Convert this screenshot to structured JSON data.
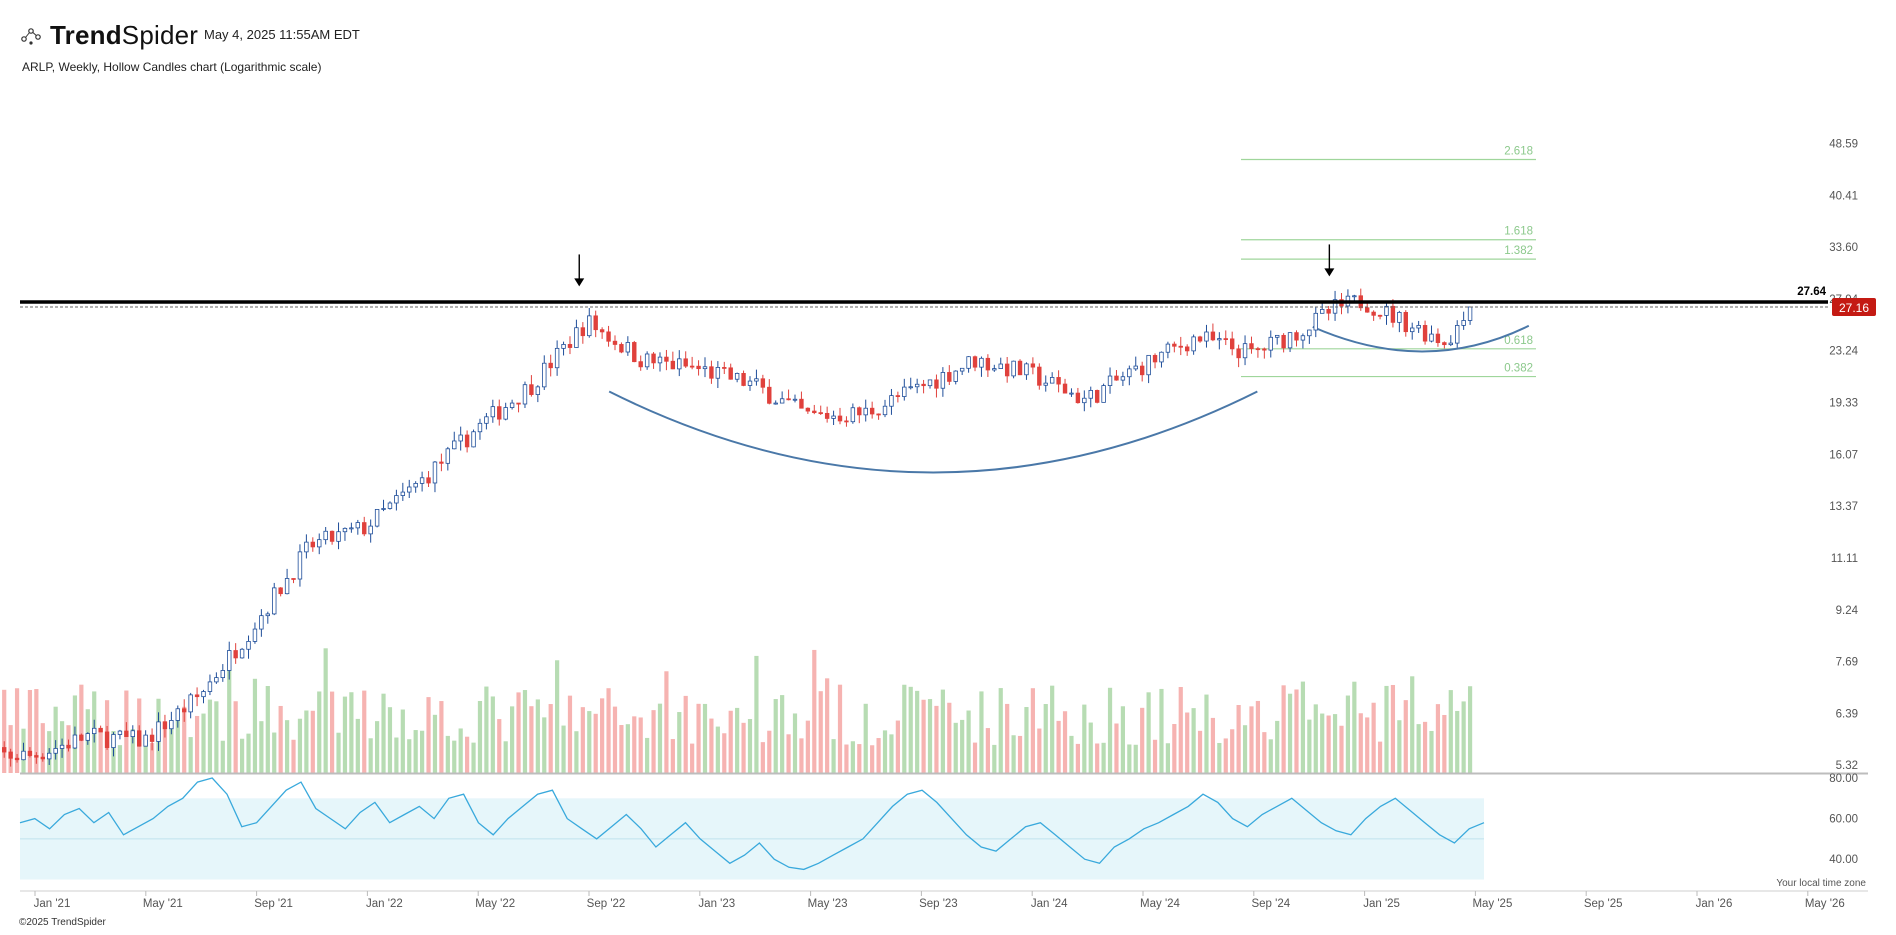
{
  "header": {
    "brand_regular": "Trend",
    "brand_bold": "Spider",
    "timestamp": "May 4, 2025 11:55AM EDT",
    "subtitle": "ARLP, Weekly, Hollow Candles chart (Logarithmic scale)"
  },
  "footer": {
    "copyright": "©2025 TrendSpider",
    "timezone_note": "Your local time zone"
  },
  "colors": {
    "up": "#1f4e9a",
    "down": "#e0413c",
    "vol_up": "#b7dcb3",
    "vol_down": "#f6b3b1",
    "rsi_line": "#39a9dc",
    "rsi_band": "#e6f6fa",
    "fib": "#9fd69b",
    "curve": "#4a78a8",
    "price_badge": "#c41a13"
  },
  "chart_data": {
    "type": "candlestick",
    "symbol": "ARLP",
    "interval": "Weekly",
    "scale": "log",
    "x_ticks": [
      "Jan '21",
      "May '21",
      "Sep '21",
      "Jan '22",
      "May '22",
      "Sep '22",
      "Jan '23",
      "May '23",
      "Sep '23",
      "Jan '24",
      "May '24",
      "Sep '24",
      "Jan '25",
      "May '25",
      "Sep '25",
      "Jan '26",
      "May '26"
    ],
    "y_ticks": [
      "48.59",
      "40.41",
      "33.60",
      "27.94",
      "23.24",
      "19.33",
      "16.07",
      "13.37",
      "11.11",
      "9.24",
      "7.69",
      "6.39",
      "5.32"
    ],
    "y_tick_values": [
      48.59,
      40.41,
      33.6,
      27.94,
      23.24,
      19.33,
      16.07,
      13.37,
      11.11,
      9.24,
      7.69,
      6.39,
      5.32
    ],
    "resistance": {
      "value": 27.64,
      "label": "27.64"
    },
    "last_price": {
      "value": 27.16,
      "label": "27.16"
    },
    "fib_levels": [
      {
        "label": "2.618",
        "value": 45.9
      },
      {
        "label": "1.618",
        "value": 34.5
      },
      {
        "label": "1.382",
        "value": 32.2
      },
      {
        "label": "0.618",
        "value": 23.4
      },
      {
        "label": "0.382",
        "value": 21.2
      }
    ],
    "price_path": [
      {
        "date": "Jan '21",
        "close": 5.5
      },
      {
        "date": "Mar '21",
        "close": 5.9
      },
      {
        "date": "May '21",
        "close": 5.8
      },
      {
        "date": "Jul '21",
        "close": 6.8
      },
      {
        "date": "Sep '21",
        "close": 8.8
      },
      {
        "date": "Nov '21",
        "close": 11.6
      },
      {
        "date": "Jan '22",
        "close": 12.4
      },
      {
        "date": "Mar '22",
        "close": 14.6
      },
      {
        "date": "May '22",
        "close": 17.6
      },
      {
        "date": "Jul '22",
        "close": 20.6
      },
      {
        "date": "Sep '22",
        "close": 25.8
      },
      {
        "date": "Nov '22",
        "close": 22.5
      },
      {
        "date": "Jan '23",
        "close": 21.8
      },
      {
        "date": "Mar '23",
        "close": 20.6
      },
      {
        "date": "May '23",
        "close": 18.4
      },
      {
        "date": "Jul '23",
        "close": 18.6
      },
      {
        "date": "Sep '23",
        "close": 20.4
      },
      {
        "date": "Nov '23",
        "close": 22.5
      },
      {
        "date": "Jan '24",
        "close": 21.4
      },
      {
        "date": "Mar '24",
        "close": 19.5
      },
      {
        "date": "May '24",
        "close": 22.0
      },
      {
        "date": "Jul '24",
        "close": 24.4
      },
      {
        "date": "Sep '24",
        "close": 23.0
      },
      {
        "date": "Nov '24",
        "close": 25.3
      },
      {
        "date": "Dec '24",
        "close": 27.0
      },
      {
        "date": "Jan '25",
        "close": 27.8
      },
      {
        "date": "Feb '25",
        "close": 26.4
      },
      {
        "date": "Apr '25",
        "close": 24.0
      },
      {
        "date": "May '25",
        "close": 27.16
      }
    ],
    "rsi": {
      "y_ticks": [
        "80.00",
        "60.00",
        "40.00"
      ],
      "y_tick_values": [
        80,
        60,
        40
      ],
      "band": [
        30,
        70
      ],
      "midline": 50,
      "values": [
        58,
        60,
        55,
        62,
        65,
        58,
        63,
        52,
        56,
        60,
        66,
        70,
        78,
        80,
        72,
        56,
        58,
        66,
        74,
        78,
        65,
        60,
        55,
        63,
        68,
        58,
        62,
        66,
        60,
        70,
        72,
        58,
        52,
        60,
        66,
        72,
        74,
        60,
        55,
        50,
        56,
        62,
        55,
        46,
        52,
        58,
        50,
        44,
        38,
        42,
        48,
        40,
        36,
        35,
        38,
        42,
        46,
        50,
        58,
        66,
        72,
        74,
        68,
        60,
        52,
        46,
        44,
        50,
        56,
        58,
        52,
        46,
        40,
        38,
        46,
        50,
        55,
        58,
        62,
        66,
        72,
        68,
        60,
        56,
        62,
        66,
        70,
        64,
        58,
        54,
        52,
        60,
        66,
        70,
        64,
        58,
        52,
        48,
        55,
        58
      ]
    },
    "volume_relative": "bars scaled to pane height; values not labeled"
  }
}
